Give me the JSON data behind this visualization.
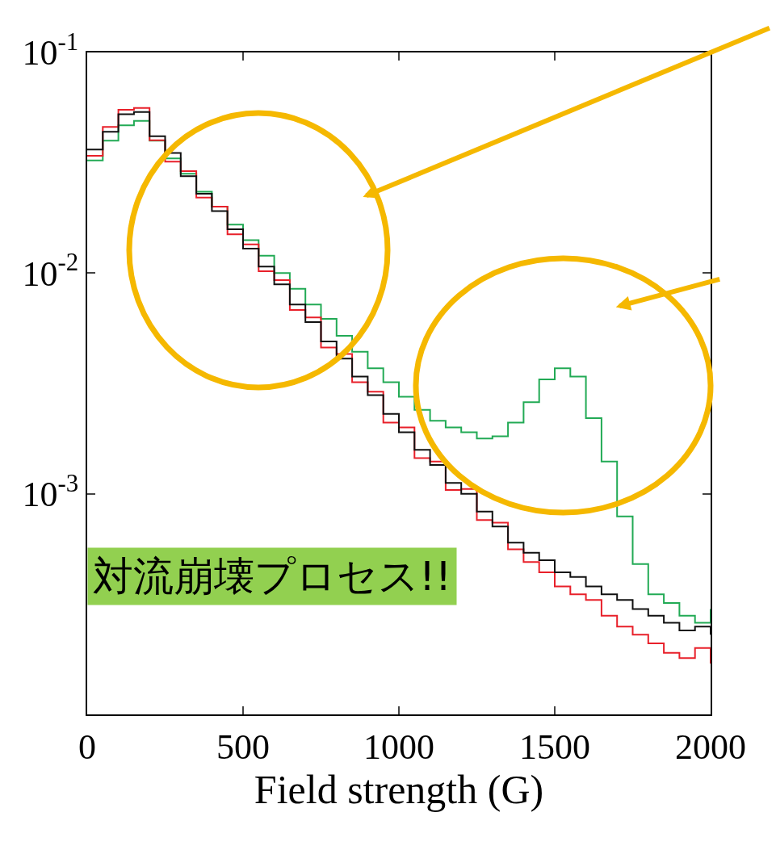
{
  "chart_data": {
    "type": "step",
    "xlabel": "Field strength (G)",
    "log": "y",
    "legend": false,
    "xlim": [
      0,
      2000
    ],
    "xticks": [
      0,
      500,
      1000,
      1500,
      2000
    ],
    "ylim": [
      0.0001,
      0.1
    ],
    "yticks": [
      {
        "value": 0.1,
        "label": "10$^{-1}$"
      },
      {
        "value": 0.01,
        "label": "10$^{-2}$"
      },
      {
        "value": 0.001,
        "label": "10$^{-3}$"
      }
    ],
    "x": [
      0,
      50,
      100,
      150,
      200,
      250,
      300,
      350,
      400,
      450,
      500,
      550,
      600,
      650,
      700,
      750,
      800,
      850,
      900,
      950,
      1000,
      1050,
      1100,
      1150,
      1200,
      1250,
      1300,
      1350,
      1400,
      1450,
      1500,
      1550,
      1600,
      1650,
      1700,
      1750,
      1800,
      1850,
      1900,
      1950,
      2000
    ],
    "series": [
      {
        "color": "#22aa55",
        "values": [
          0.0324,
          0.0398,
          0.0468,
          0.049,
          0.0398,
          0.0331,
          0.0282,
          0.0234,
          0.02,
          0.0166,
          0.0141,
          0.012,
          0.01,
          0.0085,
          0.0072,
          0.0062,
          0.0052,
          0.0044,
          0.0037,
          0.0032,
          0.00275,
          0.0024,
          0.00214,
          0.002,
          0.0019,
          0.00178,
          0.00182,
          0.0021,
          0.0026,
          0.0033,
          0.0037,
          0.0034,
          0.0022,
          0.0014,
          0.00079,
          0.00048,
          0.00035,
          0.00032,
          0.00028,
          0.00026,
          0.0003
        ]
      },
      {
        "color": "#e8202a",
        "values": [
          0.034,
          0.046,
          0.055,
          0.056,
          0.04,
          0.032,
          0.029,
          0.022,
          0.02,
          0.015,
          0.0135,
          0.0102,
          0.0093,
          0.0068,
          0.0063,
          0.0046,
          0.0043,
          0.0032,
          0.0029,
          0.0021,
          0.002,
          0.00145,
          0.0014,
          0.00104,
          0.00105,
          0.00076,
          0.00074,
          0.00056,
          0.00049,
          0.00044,
          0.00038,
          0.00035,
          0.00033,
          0.00028,
          0.00025,
          0.00023,
          0.00021,
          0.00019,
          0.00018,
          0.0002,
          0.00017
        ]
      },
      {
        "color": "#111111",
        "values": [
          0.0363,
          0.0437,
          0.0525,
          0.0537,
          0.0417,
          0.035,
          0.0275,
          0.0229,
          0.0191,
          0.0158,
          0.0129,
          0.0107,
          0.0089,
          0.0072,
          0.006,
          0.0049,
          0.0041,
          0.0034,
          0.0028,
          0.0023,
          0.0019,
          0.00158,
          0.00135,
          0.00112,
          0.001,
          0.00083,
          0.00071,
          0.0006,
          0.00054,
          0.0005,
          0.00044,
          0.00042,
          0.00038,
          0.00035,
          0.00033,
          0.0003,
          0.00028,
          0.00026,
          0.00024,
          0.00025,
          0.00023
        ]
      }
    ],
    "annotations": [
      "対流崩壊プロセス!!"
    ]
  }
}
